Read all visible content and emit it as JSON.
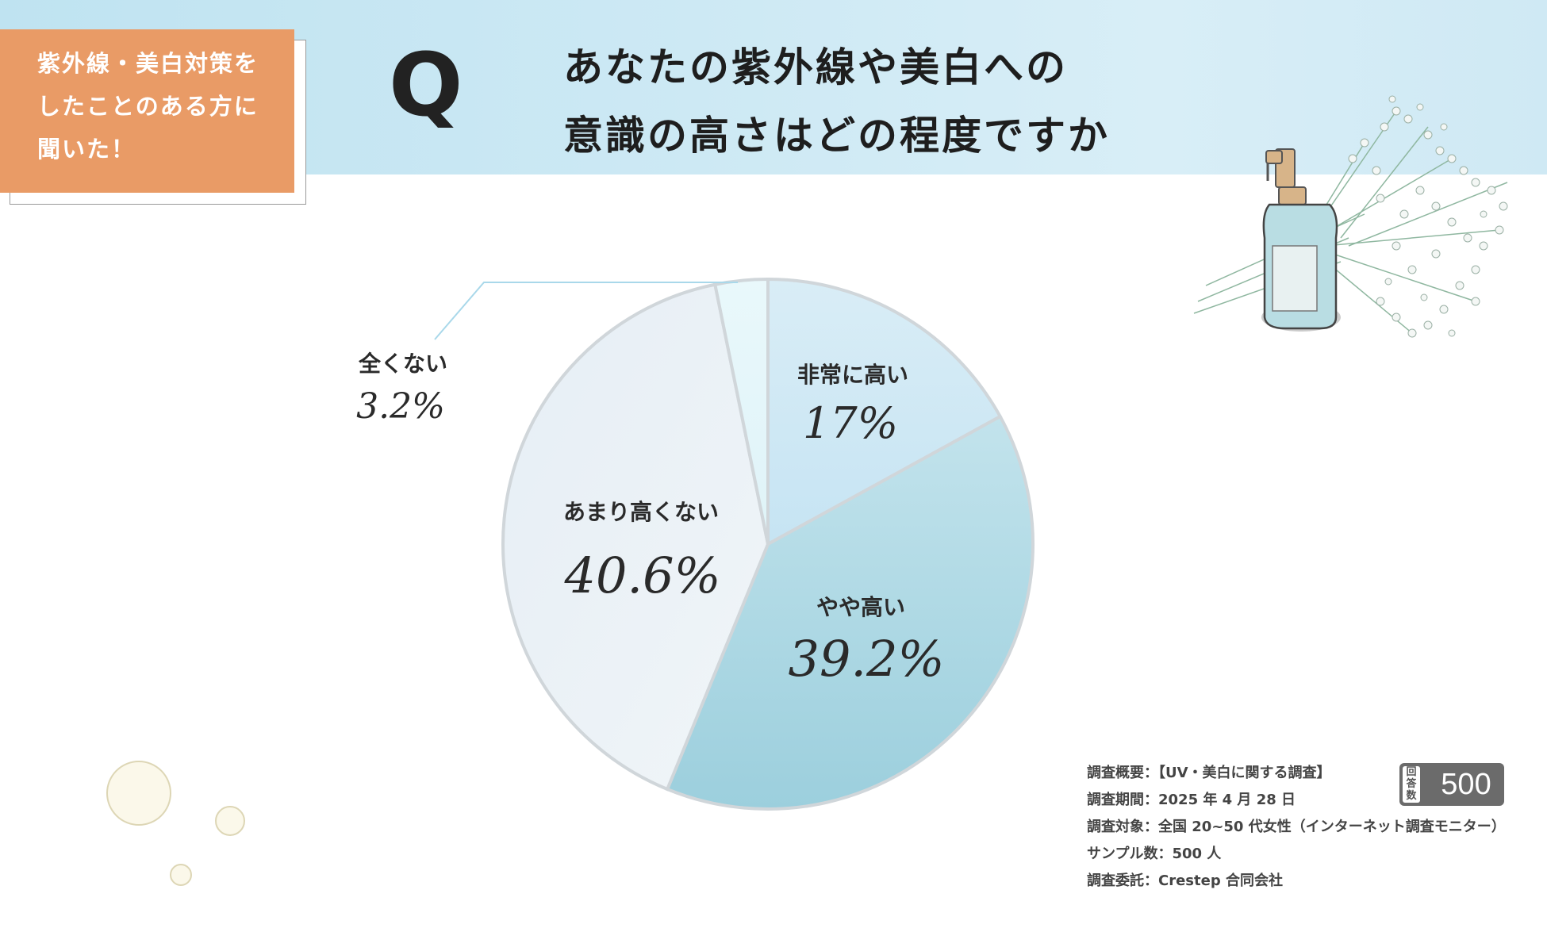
{
  "header": {
    "badge_lines": [
      "紫外線・美白対策を",
      "したことのある方に",
      "聞いた！"
    ],
    "q_mark": "Q",
    "title_lines": [
      "あなたの紫外線や美白への",
      "意識の高さはどの程度ですか"
    ]
  },
  "colors": {
    "header_band": "#c9e8f4",
    "badge": "#e99b66",
    "slice_very_high": "#cfe8f5",
    "slice_somewhat_high": "#aedbe6",
    "slice_not_very_high": "#e8f0f6",
    "slice_not_at_all": "#e3f5fa"
  },
  "chart_data": {
    "type": "pie",
    "categories": [
      "非常に高い",
      "やや高い",
      "あまり高くない",
      "全くない"
    ],
    "values": [
      17,
      39.2,
      40.6,
      3.2
    ],
    "value_labels": [
      "17%",
      "39.2%",
      "40.6%",
      "3.2%"
    ]
  },
  "survey": {
    "lines": [
      "調査概要：【UV・美白に関する調査】",
      "調査期間：2025 年 4 月 28 日",
      "調査対象：全国 20~50 代女性（インターネット調査モニター）",
      "サンプル数：500 人",
      "調査委託：Crestep 合同会社"
    ],
    "count_label": "回答数",
    "count_value": "500"
  }
}
